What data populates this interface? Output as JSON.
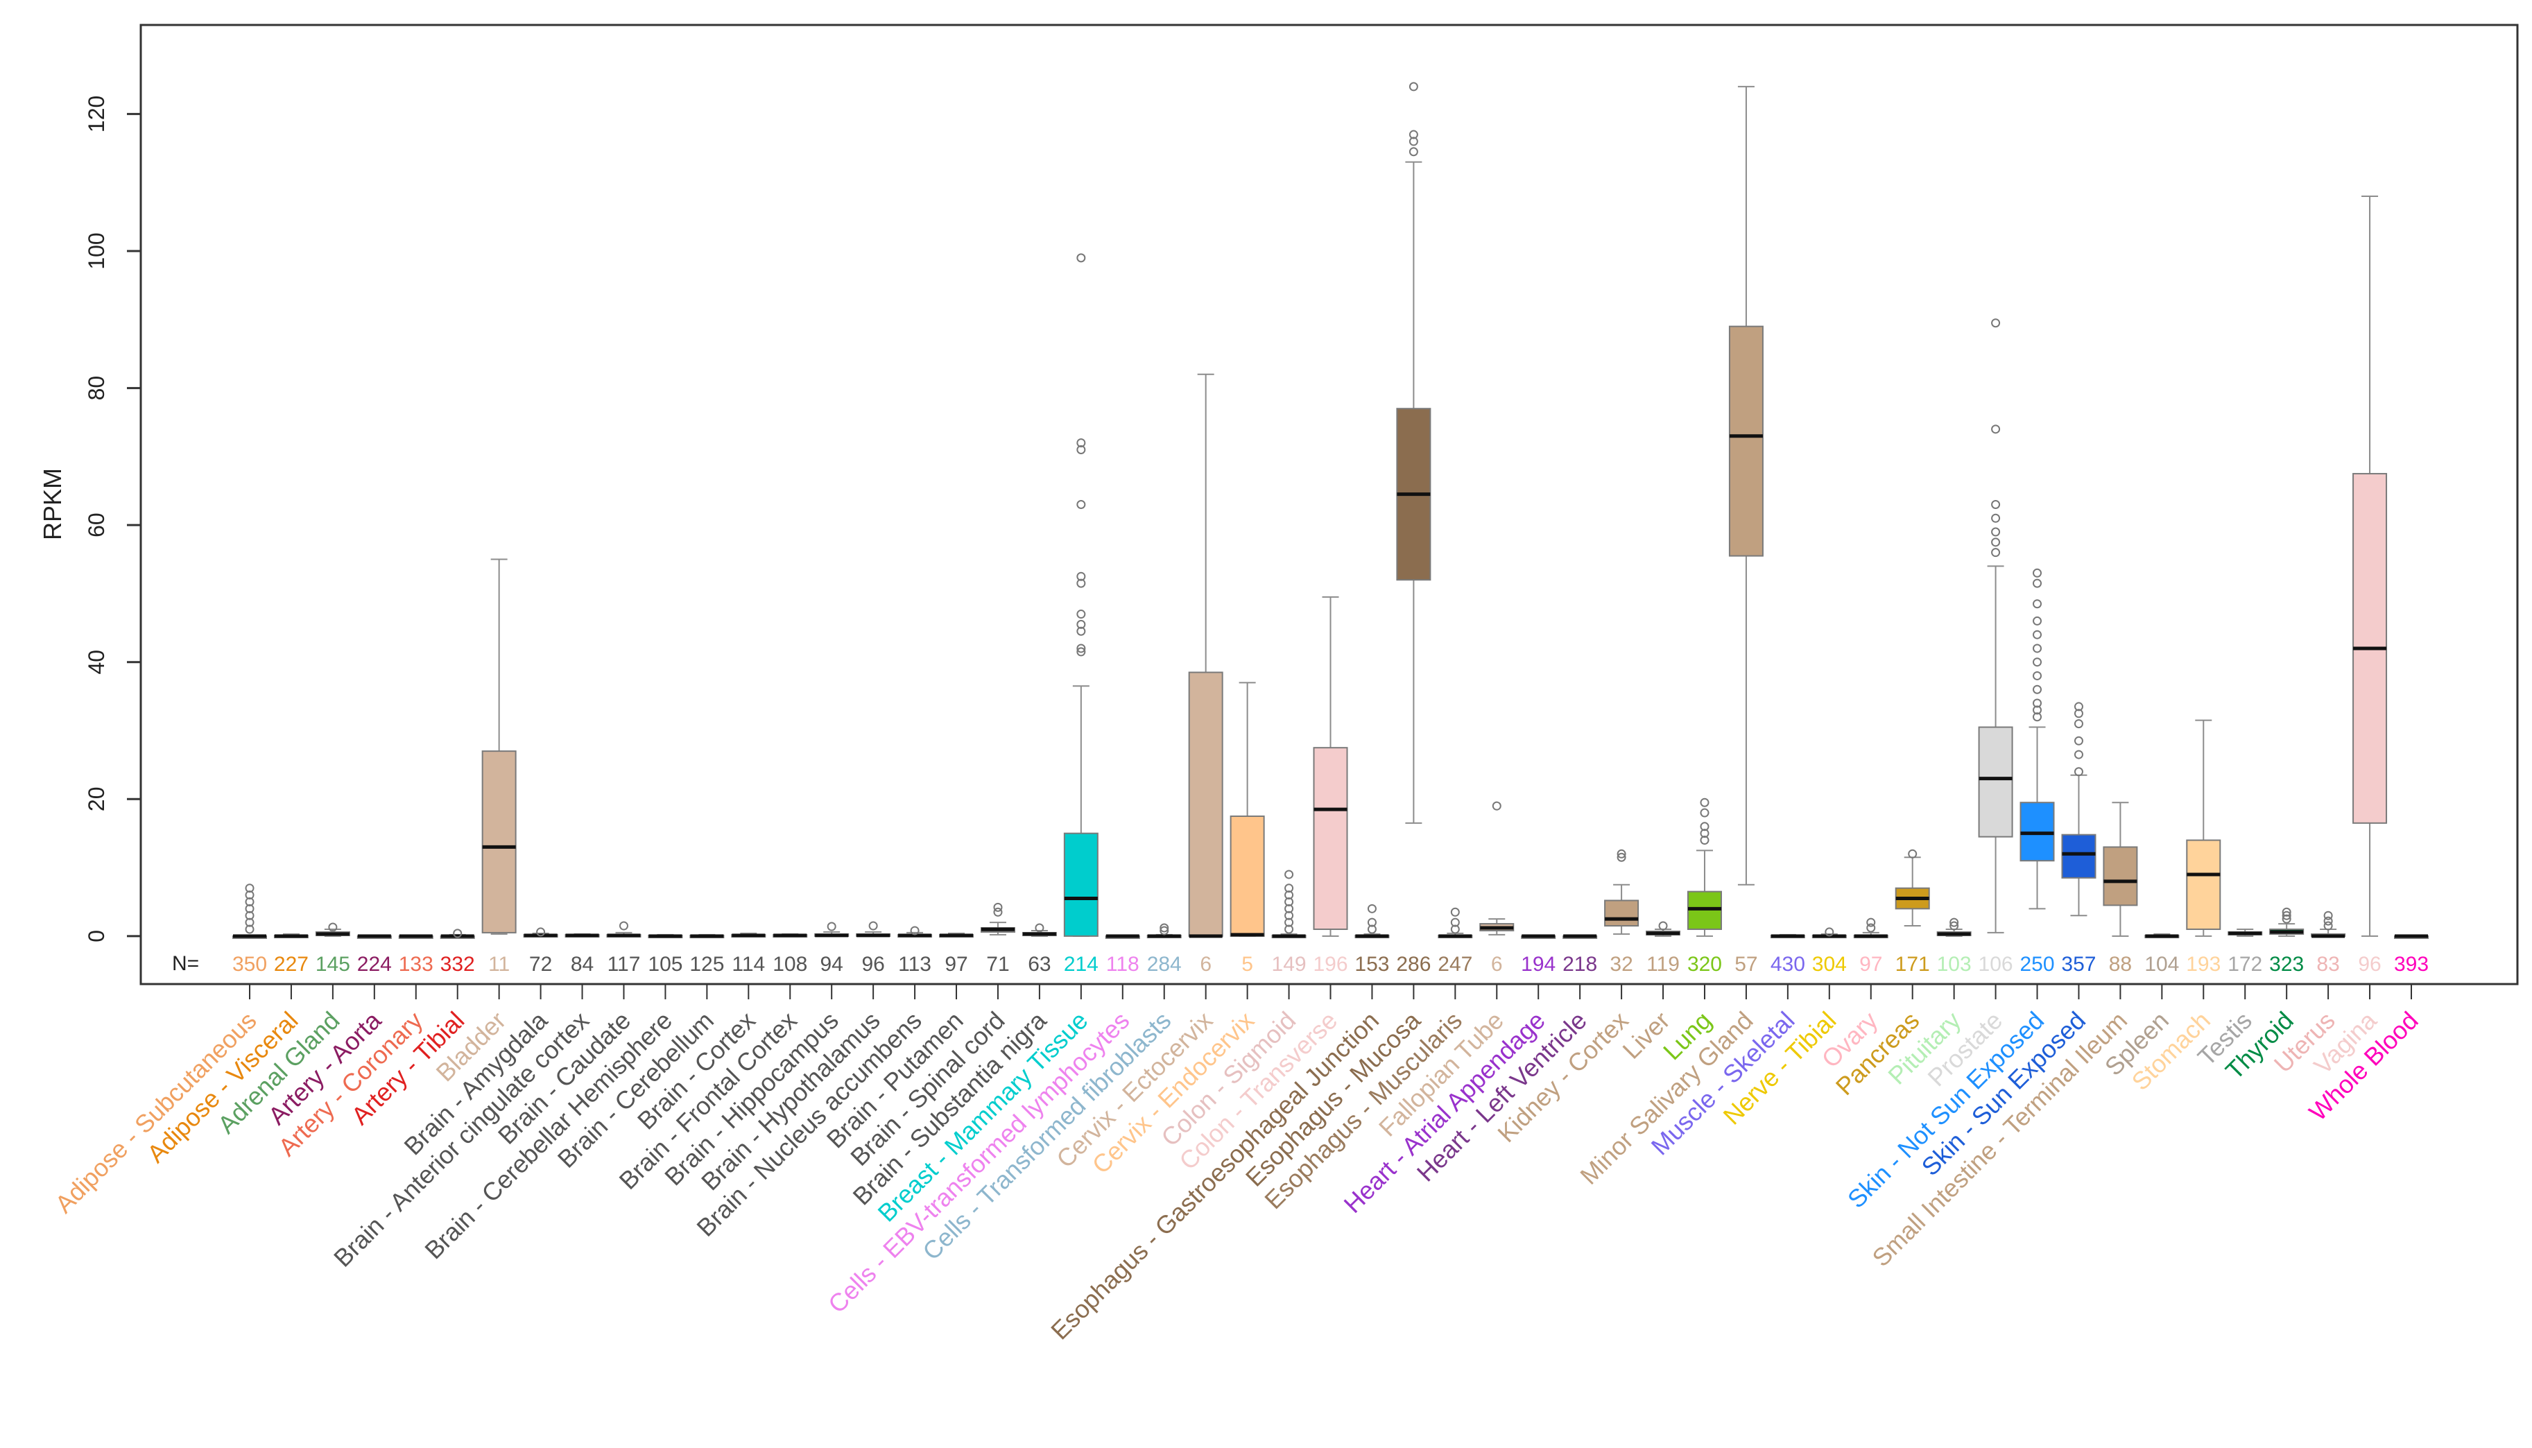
{
  "chart_data": {
    "type": "boxplot",
    "ylabel": "RPKM",
    "ylim": [
      -7,
      133
    ],
    "yticks": [
      0,
      20,
      40,
      60,
      80,
      100,
      120
    ],
    "n_label": "N=",
    "categories": [
      {
        "label": "Adipose - Subcutaneous",
        "n": "350",
        "color": "#F0A060",
        "box": [
          0,
          0,
          0,
          0,
          0
        ],
        "outliers": [
          1,
          2,
          3,
          4,
          5,
          6,
          7
        ]
      },
      {
        "label": "Adipose - Visceral",
        "n": "227",
        "color": "#E8880E",
        "box": [
          0,
          0,
          0,
          0.1,
          0.3
        ],
        "outliers": []
      },
      {
        "label": "Adrenal Gland",
        "n": "145",
        "color": "#5BA061",
        "box": [
          0,
          0.1,
          0.3,
          0.6,
          1
        ],
        "outliers": [
          1.3
        ]
      },
      {
        "label": "Artery - Aorta",
        "n": "224",
        "color": "#8B1C62",
        "box": [
          0,
          0,
          0,
          0,
          0.1
        ],
        "outliers": []
      },
      {
        "label": "Artery - Coronary",
        "n": "133",
        "color": "#EE6A50",
        "box": [
          0,
          0,
          0,
          0,
          0.1
        ],
        "outliers": []
      },
      {
        "label": "Artery - Tibial",
        "n": "332",
        "color": "#E02020",
        "box": [
          0,
          0,
          0,
          0,
          0.2
        ],
        "outliers": [
          0.4
        ]
      },
      {
        "label": "Bladder",
        "n": "11",
        "color": "#D2B49C",
        "box": [
          0.3,
          0.5,
          13,
          27,
          55
        ],
        "outliers": []
      },
      {
        "label": "Brain - Amygdala",
        "n": "72",
        "color": "#555555",
        "box": [
          0,
          0,
          0.1,
          0.2,
          0.4
        ],
        "outliers": [
          0.6
        ]
      },
      {
        "label": "Brain - Anterior cingulate cortex",
        "n": "84",
        "color": "#555555",
        "box": [
          0,
          0,
          0.1,
          0.2,
          0.3
        ],
        "outliers": []
      },
      {
        "label": "Brain - Caudate",
        "n": "117",
        "color": "#555555",
        "box": [
          0,
          0,
          0.1,
          0.2,
          0.5
        ],
        "outliers": [
          1.5
        ]
      },
      {
        "label": "Brain - Cerebellar Hemisphere",
        "n": "105",
        "color": "#555555",
        "box": [
          0,
          0,
          0,
          0.1,
          0.2
        ],
        "outliers": []
      },
      {
        "label": "Brain - Cerebellum",
        "n": "125",
        "color": "#555555",
        "box": [
          0,
          0,
          0,
          0.1,
          0.2
        ],
        "outliers": []
      },
      {
        "label": "Brain - Cortex",
        "n": "114",
        "color": "#555555",
        "box": [
          0,
          0,
          0.1,
          0.2,
          0.4
        ],
        "outliers": []
      },
      {
        "label": "Brain - Frontal Cortex",
        "n": "108",
        "color": "#555555",
        "box": [
          0,
          0,
          0.1,
          0.2,
          0.3
        ],
        "outliers": []
      },
      {
        "label": "Brain - Hippocampus",
        "n": "94",
        "color": "#555555",
        "box": [
          0,
          0,
          0.1,
          0.3,
          0.6
        ],
        "outliers": [
          1.4
        ]
      },
      {
        "label": "Brain - Hypothalamus",
        "n": "96",
        "color": "#555555",
        "box": [
          0,
          0,
          0.1,
          0.3,
          0.6
        ],
        "outliers": [
          1.5
        ]
      },
      {
        "label": "Brain - Nucleus accumbens",
        "n": "113",
        "color": "#555555",
        "box": [
          0,
          0,
          0.1,
          0.2,
          0.5
        ],
        "outliers": [
          0.8
        ]
      },
      {
        "label": "Brain - Putamen",
        "n": "97",
        "color": "#555555",
        "box": [
          0,
          0,
          0.1,
          0.2,
          0.4
        ],
        "outliers": []
      },
      {
        "label": "Brain - Spinal cord",
        "n": "71",
        "color": "#555555",
        "box": [
          0.2,
          0.6,
          1,
          1.2,
          2
        ],
        "outliers": [
          3.5,
          4.2
        ]
      },
      {
        "label": "Brain - Substantia nigra",
        "n": "63",
        "color": "#555555",
        "box": [
          0,
          0.1,
          0.3,
          0.5,
          0.8
        ],
        "outliers": [
          1.2
        ]
      },
      {
        "label": "Breast - Mammary Tissue",
        "n": "214",
        "color": "#00CDCD",
        "box": [
          0,
          0,
          5.5,
          15,
          36.5
        ],
        "outliers": [
          41.5,
          42,
          44.5,
          45.5,
          47,
          51.5,
          52.5,
          63,
          71,
          72,
          99
        ]
      },
      {
        "label": "Cells - EBV-transformed lymphocytes",
        "n": "118",
        "color": "#EE82EE",
        "box": [
          0,
          0,
          0,
          0,
          0.1
        ],
        "outliers": []
      },
      {
        "label": "Cells - Transformed fibroblasts",
        "n": "284",
        "color": "#8DB6CD",
        "box": [
          0,
          0,
          0,
          0.1,
          0.2
        ],
        "outliers": [
          0.8,
          1.2
        ]
      },
      {
        "label": "Cervix - Ectocervix",
        "n": "6",
        "color": "#D2B49C",
        "box": [
          0,
          0,
          0,
          38.5,
          82
        ],
        "outliers": []
      },
      {
        "label": "Cervix - Endocervix",
        "n": "5",
        "color": "#FFC58B",
        "box": [
          0,
          0,
          0.2,
          17.5,
          37
        ],
        "outliers": []
      },
      {
        "label": "Colon - Sigmoid",
        "n": "149",
        "color": "#E6C0C0",
        "box": [
          0,
          0,
          0,
          0.1,
          0.3
        ],
        "outliers": [
          1,
          2,
          3,
          4,
          5,
          6,
          7,
          9
        ]
      },
      {
        "label": "Colon - Transverse",
        "n": "196",
        "color": "#F4CCCC",
        "box": [
          0,
          1,
          18.5,
          27.5,
          49.5
        ],
        "outliers": []
      },
      {
        "label": "Esophagus - Gastroesophageal Junction",
        "n": "153",
        "color": "#8B6D4F",
        "box": [
          0,
          0,
          0,
          0.1,
          0.3
        ],
        "outliers": [
          1,
          2,
          4
        ]
      },
      {
        "label": "Esophagus - Mucosa",
        "n": "286",
        "color": "#8B6D4F",
        "box": [
          16.5,
          52,
          64.5,
          77,
          113
        ],
        "outliers": [
          114.5,
          116,
          117,
          124
        ]
      },
      {
        "label": "Esophagus - Muscularis",
        "n": "247",
        "color": "#9A7B5D",
        "box": [
          0,
          0,
          0,
          0.1,
          0.4
        ],
        "outliers": [
          1,
          2,
          3.5
        ]
      },
      {
        "label": "Fallopian Tube",
        "n": "6",
        "color": "#D2B49C",
        "box": [
          0.2,
          0.8,
          1.2,
          1.8,
          2.5
        ],
        "outliers": [
          19
        ]
      },
      {
        "label": "Heart - Atrial Appendage",
        "n": "194",
        "color": "#9932CC",
        "box": [
          0,
          0,
          0,
          0,
          0.1
        ],
        "outliers": []
      },
      {
        "label": "Heart - Left Ventricle",
        "n": "218",
        "color": "#7A378B",
        "box": [
          0,
          0,
          0,
          0,
          0.1
        ],
        "outliers": []
      },
      {
        "label": "Kidney - Cortex",
        "n": "32",
        "color": "#C0A080",
        "box": [
          0.3,
          1.5,
          2.5,
          5.2,
          7.5
        ],
        "outliers": [
          11.5,
          12
        ]
      },
      {
        "label": "Liver",
        "n": "119",
        "color": "#C0A080",
        "box": [
          0,
          0.2,
          0.4,
          0.7,
          1
        ],
        "outliers": [
          1.5
        ]
      },
      {
        "label": "Lung",
        "n": "320",
        "color": "#7BC618",
        "box": [
          0,
          1,
          4,
          6.5,
          12.5
        ],
        "outliers": [
          14,
          15,
          16,
          18,
          19.5
        ]
      },
      {
        "label": "Minor Salivary Gland",
        "n": "57",
        "color": "#C0A080",
        "box": [
          7.5,
          55.5,
          73,
          89,
          124
        ],
        "outliers": []
      },
      {
        "label": "Muscle - Skeletal",
        "n": "430",
        "color": "#7A67EE",
        "box": [
          0,
          0,
          0,
          0.1,
          0.2
        ],
        "outliers": []
      },
      {
        "label": "Nerve - Tibial",
        "n": "304",
        "color": "#EEC900",
        "box": [
          0,
          0,
          0,
          0.1,
          0.3
        ],
        "outliers": [
          0.6
        ]
      },
      {
        "label": "Ovary",
        "n": "97",
        "color": "#FFB6C1",
        "box": [
          0,
          0,
          0,
          0.1,
          0.5
        ],
        "outliers": [
          1.2,
          2
        ]
      },
      {
        "label": "Pancreas",
        "n": "171",
        "color": "#CD9B1D",
        "box": [
          1.5,
          4,
          5.5,
          7,
          11.5
        ],
        "outliers": [
          12
        ]
      },
      {
        "label": "Pituitary",
        "n": "103",
        "color": "#B4EEB4",
        "box": [
          0,
          0.1,
          0.3,
          0.6,
          1
        ],
        "outliers": [
          1.5,
          2
        ]
      },
      {
        "label": "Prostate",
        "n": "106",
        "color": "#D9D9D9",
        "box": [
          0.5,
          14.5,
          23,
          30.5,
          54
        ],
        "outliers": [
          56,
          57.5,
          59,
          61,
          63,
          74,
          89.5
        ]
      },
      {
        "label": "Skin - Not Sun Exposed",
        "n": "250",
        "color": "#1E90FF",
        "box": [
          4,
          11,
          15,
          19.5,
          30.5
        ],
        "outliers": [
          32,
          33,
          34,
          36,
          38,
          40,
          42,
          44,
          46,
          48.5,
          51.5,
          53
        ]
      },
      {
        "label": "Skin - Sun Exposed",
        "n": "357",
        "color": "#1E5ED8",
        "box": [
          3,
          8.5,
          12,
          14.8,
          23.5
        ],
        "outliers": [
          24,
          26.5,
          28.5,
          31,
          32.5,
          33.5
        ]
      },
      {
        "label": "Small Intestine - Terminal Ileum",
        "n": "88",
        "color": "#C0A080",
        "box": [
          0,
          4.5,
          8,
          13,
          19.5
        ],
        "outliers": []
      },
      {
        "label": "Spleen",
        "n": "104",
        "color": "#B0A090",
        "box": [
          0,
          0,
          0,
          0.1,
          0.3
        ],
        "outliers": []
      },
      {
        "label": "Stomach",
        "n": "193",
        "color": "#FFD39B",
        "box": [
          0,
          1,
          9,
          14,
          31.5
        ],
        "outliers": []
      },
      {
        "label": "Testis",
        "n": "172",
        "color": "#A6A6A6",
        "box": [
          0,
          0.2,
          0.4,
          0.6,
          1
        ],
        "outliers": []
      },
      {
        "label": "Thyroid",
        "n": "323",
        "color": "#008B45",
        "box": [
          0,
          0.3,
          0.6,
          1,
          1.8
        ],
        "outliers": [
          2.5,
          3,
          3.5
        ]
      },
      {
        "label": "Uterus",
        "n": "83",
        "color": "#EEB4B4",
        "box": [
          0,
          0,
          0,
          0.3,
          1
        ],
        "outliers": [
          1.5,
          2.2,
          3
        ]
      },
      {
        "label": "Vagina",
        "n": "96",
        "color": "#F4CCCC",
        "box": [
          0,
          16.5,
          42,
          67.5,
          108
        ],
        "outliers": []
      },
      {
        "label": "Whole Blood",
        "n": "393",
        "color": "#FF00BB",
        "box": [
          0,
          0,
          0,
          0,
          0.1
        ],
        "outliers": []
      }
    ]
  }
}
